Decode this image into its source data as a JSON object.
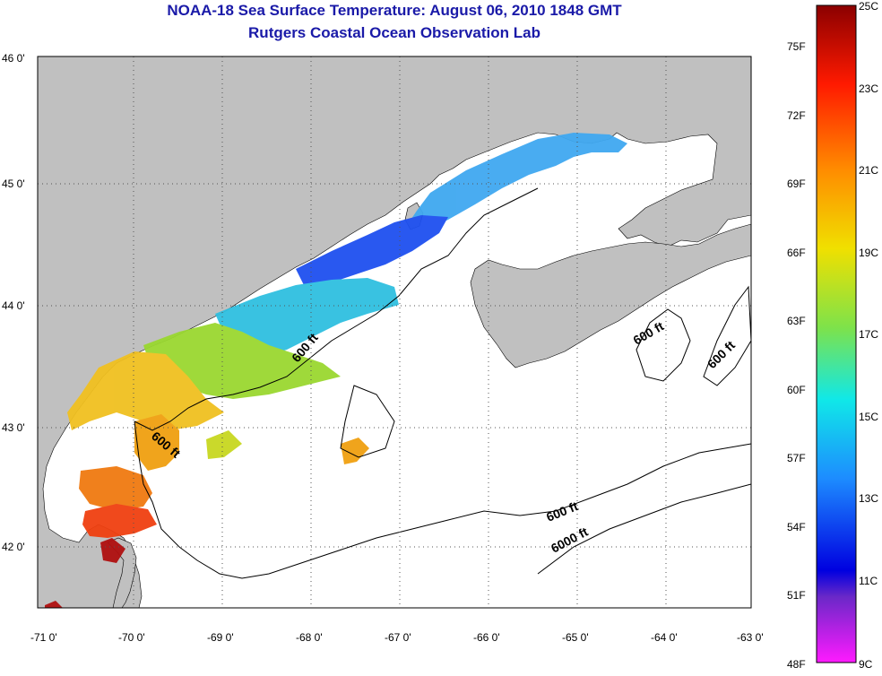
{
  "title": {
    "line1": "NOAA-18 Sea Surface Temperature:  August 06, 2010 1848 GMT",
    "line2": "Rutgers Coastal Ocean Observation Lab"
  },
  "map": {
    "lon_ticks": [
      "-71 0'",
      "-70 0'",
      "-69 0'",
      "-68 0'",
      "-67 0'",
      "-66 0'",
      "-65 0'",
      "-64 0'",
      "-63 0'"
    ],
    "lat_ticks": [
      "46 0'",
      "45 0'",
      "44 0'",
      "43 0'",
      "42 0'"
    ],
    "contour_labels": [
      "600 ft",
      "600 ft",
      "600 ft",
      "600 ft",
      "6000 ft"
    ],
    "colors": {
      "land": "#c0c0c0",
      "water": "#ffffff",
      "grid": "#555555"
    }
  },
  "colorbar": {
    "fahrenheit": [
      "75F",
      "72F",
      "69F",
      "66F",
      "63F",
      "60F",
      "57F",
      "54F",
      "51F",
      "48F"
    ],
    "celsius": [
      "25C",
      "23C",
      "21C",
      "19C",
      "17C",
      "15C",
      "13C",
      "11C",
      "9C"
    ]
  }
}
